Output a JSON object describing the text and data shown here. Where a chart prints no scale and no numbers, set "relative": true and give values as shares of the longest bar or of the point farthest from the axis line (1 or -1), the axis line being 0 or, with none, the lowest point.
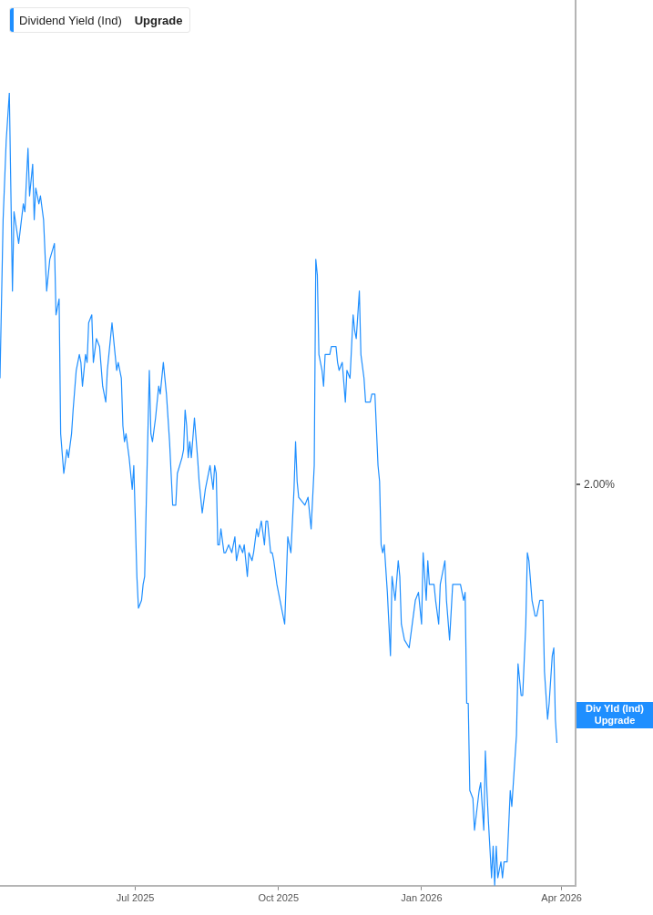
{
  "chart_data": {
    "type": "line",
    "relative": true,
    "legend": "top left",
    "marker": "none",
    "line_style": "solid",
    "xlim": [
      "2025-04-05",
      "2026-04-10"
    ],
    "xticks": [
      {
        "value": "2025-07-01",
        "label": "Jul 2025"
      },
      {
        "value": "2025-10-01",
        "label": "Oct 2025"
      },
      {
        "value": "2026-01-01",
        "label": "Jan 2026"
      },
      {
        "value": "2026-04-01",
        "label": "Apr 2026"
      }
    ],
    "annotations": [
      "Upgrade",
      "2.00%",
      "Div Yld (Ind)",
      "Upgrade"
    ],
    "x": [
      "2025-04-05",
      "2025-04-07",
      "2025-04-09",
      "2025-04-11",
      "2025-04-13",
      "2025-04-14",
      "2025-04-17",
      "2025-04-20",
      "2025-04-21",
      "2025-04-23",
      "2025-04-24",
      "2025-04-26",
      "2025-04-27",
      "2025-04-28",
      "2025-04-30",
      "2025-05-01",
      "2025-05-03",
      "2025-05-05",
      "2025-05-07",
      "2025-05-10",
      "2025-05-11",
      "2025-05-13",
      "2025-05-14",
      "2025-05-16",
      "2025-05-18",
      "2025-05-19",
      "2025-05-21",
      "2025-05-22",
      "2025-05-24",
      "2025-05-26",
      "2025-05-27",
      "2025-05-28",
      "2025-05-30",
      "2025-05-31",
      "2025-06-01",
      "2025-06-03",
      "2025-06-04",
      "2025-06-06",
      "2025-06-08",
      "2025-06-10",
      "2025-06-12",
      "2025-06-13",
      "2025-06-14",
      "2025-06-16",
      "2025-06-18",
      "2025-06-19",
      "2025-06-20",
      "2025-06-22",
      "2025-06-23",
      "2025-06-24",
      "2025-06-25",
      "2025-06-27",
      "2025-06-29",
      "2025-06-30",
      "2025-07-02",
      "2025-07-03",
      "2025-07-05",
      "2025-07-06",
      "2025-07-07",
      "2025-07-08",
      "2025-07-10",
      "2025-07-11",
      "2025-07-12",
      "2025-07-14",
      "2025-07-16",
      "2025-07-17",
      "2025-07-19",
      "2025-07-21",
      "2025-07-23",
      "2025-07-24",
      "2025-07-25",
      "2025-07-27",
      "2025-07-28",
      "2025-07-31",
      "2025-08-01",
      "2025-08-02",
      "2025-08-03",
      "2025-08-04",
      "2025-08-05",
      "2025-08-06",
      "2025-08-08",
      "2025-08-10",
      "2025-08-11",
      "2025-08-13",
      "2025-08-15",
      "2025-08-18",
      "2025-08-20",
      "2025-08-21",
      "2025-08-22",
      "2025-08-23",
      "2025-08-24",
      "2025-08-25",
      "2025-08-27",
      "2025-08-28",
      "2025-08-30",
      "2025-09-01",
      "2025-09-03",
      "2025-09-04",
      "2025-09-06",
      "2025-09-08",
      "2025-09-09",
      "2025-09-11",
      "2025-09-12",
      "2025-09-14",
      "2025-09-15",
      "2025-09-17",
      "2025-09-18",
      "2025-09-20",
      "2025-09-22",
      "2025-09-23",
      "2025-09-24",
      "2025-09-26",
      "2025-09-27",
      "2025-09-28",
      "2025-09-30",
      "2025-10-02",
      "2025-10-03",
      "2025-10-05",
      "2025-10-07",
      "2025-10-09",
      "2025-10-11",
      "2025-10-12",
      "2025-10-13",
      "2025-10-14",
      "2025-10-18",
      "2025-10-20",
      "2025-10-22",
      "2025-10-24",
      "2025-10-25",
      "2025-10-26",
      "2025-10-27",
      "2025-10-29",
      "2025-10-30",
      "2025-10-31",
      "2025-11-03",
      "2025-11-04",
      "2025-11-07",
      "2025-11-08",
      "2025-11-09",
      "2025-11-11",
      "2025-11-13",
      "2025-11-14",
      "2025-11-16",
      "2025-11-18",
      "2025-11-19",
      "2025-11-20",
      "2025-11-22",
      "2025-11-23",
      "2025-11-25",
      "2025-11-26",
      "2025-11-29",
      "2025-11-30",
      "2025-12-02",
      "2025-12-04",
      "2025-12-05",
      "2025-12-06",
      "2025-12-07",
      "2025-12-08",
      "2025-12-10",
      "2025-12-12",
      "2025-12-13",
      "2025-12-15",
      "2025-12-17",
      "2025-12-18",
      "2025-12-19",
      "2025-12-21",
      "2025-12-24",
      "2025-12-26",
      "2025-12-28",
      "2025-12-30",
      "2026-01-01",
      "2026-01-02",
      "2026-01-04",
      "2026-01-05",
      "2026-01-06",
      "2026-01-09",
      "2026-01-10",
      "2026-01-12",
      "2026-01-13",
      "2026-01-16",
      "2026-01-17",
      "2026-01-19",
      "2026-01-21",
      "2026-01-23",
      "2026-01-26",
      "2026-01-28",
      "2026-01-29",
      "2026-01-30",
      "2026-01-31",
      "2026-02-01",
      "2026-02-03",
      "2026-02-04",
      "2026-02-07",
      "2026-02-08",
      "2026-02-10",
      "2026-02-11",
      "2026-02-12",
      "2026-02-13",
      "2026-02-15",
      "2026-02-16",
      "2026-02-17",
      "2026-02-18",
      "2026-02-19",
      "2026-02-21",
      "2026-02-22",
      "2026-02-23",
      "2026-02-25",
      "2026-02-27",
      "2026-02-28",
      "2026-03-03",
      "2026-03-04",
      "2026-03-06",
      "2026-03-07",
      "2026-03-09",
      "2026-03-10",
      "2026-03-11",
      "2026-03-13",
      "2026-03-15",
      "2026-03-16",
      "2026-03-18",
      "2026-03-20",
      "2026-03-21",
      "2026-03-23",
      "2026-03-24",
      "2026-03-26",
      "2026-03-27",
      "2026-03-28",
      "2026-03-29"
    ],
    "series": [
      {
        "name": "Dividend Yield (Ind)",
        "color": "#1f8fff",
        "values": [
          0.64,
          0.84,
          0.94,
          1.0,
          0.75,
          0.85,
          0.81,
          0.86,
          0.85,
          0.93,
          0.87,
          0.91,
          0.84,
          0.88,
          0.86,
          0.87,
          0.84,
          0.75,
          0.79,
          0.81,
          0.72,
          0.74,
          0.57,
          0.52,
          0.55,
          0.54,
          0.57,
          0.6,
          0.65,
          0.67,
          0.66,
          0.63,
          0.67,
          0.66,
          0.71,
          0.72,
          0.66,
          0.69,
          0.68,
          0.63,
          0.61,
          0.65,
          0.67,
          0.71,
          0.67,
          0.65,
          0.66,
          0.64,
          0.58,
          0.56,
          0.57,
          0.54,
          0.5,
          0.53,
          0.39,
          0.35,
          0.36,
          0.38,
          0.39,
          0.48,
          0.65,
          0.57,
          0.56,
          0.59,
          0.63,
          0.62,
          0.66,
          0.62,
          0.56,
          0.52,
          0.48,
          0.48,
          0.52,
          0.54,
          0.55,
          0.6,
          0.58,
          0.54,
          0.56,
          0.54,
          0.59,
          0.54,
          0.51,
          0.47,
          0.5,
          0.53,
          0.5,
          0.53,
          0.52,
          0.43,
          0.43,
          0.45,
          0.42,
          0.42,
          0.43,
          0.42,
          0.44,
          0.41,
          0.43,
          0.42,
          0.43,
          0.39,
          0.42,
          0.41,
          0.42,
          0.45,
          0.44,
          0.46,
          0.43,
          0.46,
          0.46,
          0.42,
          0.42,
          0.41,
          0.38,
          0.36,
          0.35,
          0.33,
          0.44,
          0.42,
          0.5,
          0.56,
          0.51,
          0.49,
          0.48,
          0.49,
          0.45,
          0.53,
          0.79,
          0.77,
          0.67,
          0.65,
          0.63,
          0.67,
          0.67,
          0.68,
          0.68,
          0.66,
          0.65,
          0.66,
          0.61,
          0.65,
          0.64,
          0.72,
          0.7,
          0.69,
          0.75,
          0.67,
          0.64,
          0.61,
          0.61,
          0.62,
          0.62,
          0.53,
          0.51,
          0.43,
          0.42,
          0.43,
          0.37,
          0.29,
          0.39,
          0.36,
          0.41,
          0.39,
          0.33,
          0.31,
          0.3,
          0.33,
          0.36,
          0.37,
          0.33,
          0.42,
          0.36,
          0.41,
          0.38,
          0.38,
          0.36,
          0.33,
          0.38,
          0.41,
          0.36,
          0.31,
          0.38,
          0.38,
          0.38,
          0.36,
          0.37,
          0.23,
          0.23,
          0.12,
          0.11,
          0.07,
          0.12,
          0.13,
          0.07,
          0.17,
          0.12,
          0.08,
          0.01,
          0.05,
          0,
          0.05,
          0.01,
          0.03,
          0.01,
          0.03,
          0.03,
          0.12,
          0.1,
          0.19,
          0.28,
          0.24,
          0.24,
          0.33,
          0.42,
          0.41,
          0.36,
          0.34,
          0.34,
          0.36,
          0.36,
          0.27,
          0.21,
          0.23,
          0.29,
          0.3,
          0.21,
          0.18
        ]
      }
    ]
  }
}
